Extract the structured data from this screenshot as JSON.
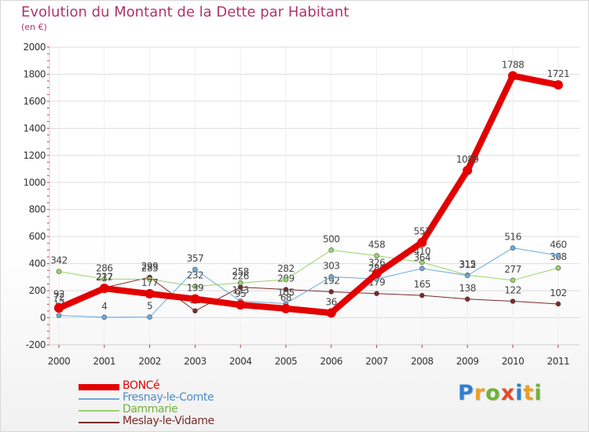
{
  "title": "Evolution du Montant de la Dette par Habitant",
  "unit": "(en €)",
  "logo": {
    "text": "Proxiti",
    "letter_colors": [
      "#2f7fcf",
      "#e8a12c",
      "#6fb33a",
      "#e34b2a",
      "#2f7fcf",
      "#e8a12c",
      "#6fb33a"
    ]
  },
  "chart_data": {
    "type": "line",
    "x": [
      "2000",
      "2001",
      "2002",
      "2003",
      "2004",
      "2005",
      "2006",
      "2007",
      "2008",
      "2009",
      "2010",
      "2011"
    ],
    "yticks": [
      "-200",
      "0",
      "200",
      "400",
      "600",
      "800",
      "1000",
      "1200",
      "1400",
      "1600",
      "1800",
      "2000"
    ],
    "ylim": [
      -200,
      2000
    ],
    "grid": true,
    "legend_position": "bottom-left",
    "series": [
      {
        "name": "Meslay-le-Vidame",
        "color": "#7a2a2a",
        "width": 1,
        "marker": 3,
        "values": [
          92,
          222,
          299,
          51,
          226,
          209,
          192,
          179,
          165,
          138,
          122,
          102
        ],
        "labels": [
          "92",
          "222",
          "299",
          "51",
          "226",
          "209",
          "192",
          "179",
          "165",
          "138",
          "122",
          "102"
        ]
      },
      {
        "name": "Dammarie",
        "color": "#99d46b",
        "width": 1,
        "marker": 3,
        "values": [
          342,
          286,
          285,
          232,
          258,
          282,
          500,
          458,
          410,
          315,
          277,
          368
        ],
        "labels": [
          "342",
          "286",
          "285",
          "232",
          "258",
          "282",
          "500",
          "458",
          "410",
          "315",
          "277",
          "368"
        ]
      },
      {
        "name": "Fresnay-le-Comte",
        "color": "#6da9d8",
        "width": 1,
        "marker": 3,
        "values": [
          17,
          4,
          5,
          357,
          123,
          105,
          303,
          286,
          364,
          312,
          516,
          460
        ],
        "labels": [
          "17",
          "4",
          "5",
          "357",
          "123",
          "105",
          "303",
          "286",
          "364",
          "312",
          "516",
          "460"
        ]
      },
      {
        "name": "BONCé",
        "color": "#e30000",
        "width": 8,
        "marker": 6,
        "values": [
          72,
          217,
          177,
          139,
          95,
          68,
          36,
          326,
          557,
          1089,
          1788,
          1721
        ],
        "labels": [
          "72",
          "217",
          "177",
          "139",
          "95",
          "68",
          "36",
          "326",
          "557",
          "1089",
          "1788",
          "1721"
        ]
      }
    ]
  },
  "legend": [
    {
      "label": "BONCé",
      "color": "#e30000",
      "text_color": "#e30000",
      "thickness": 8
    },
    {
      "label": "Fresnay-le-Comte",
      "color": "#6da9d8",
      "text_color": "#4d8bc7",
      "thickness": 2
    },
    {
      "label": "Dammarie",
      "color": "#99d46b",
      "text_color": "#6fb33a",
      "thickness": 2
    },
    {
      "label": "Meslay-le-Vidame",
      "color": "#7a2a2a",
      "text_color": "#7a2a2a",
      "thickness": 2
    }
  ]
}
